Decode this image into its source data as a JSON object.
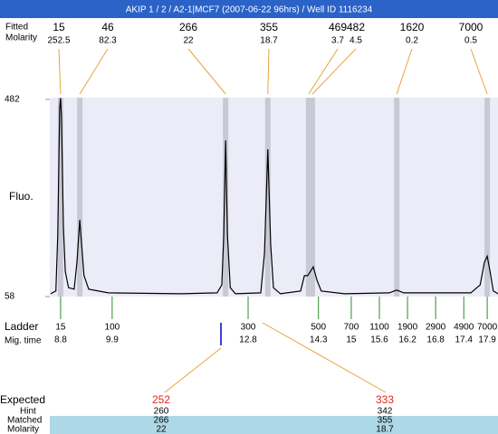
{
  "title": "AKIP 1 / 2 / A2-1|MCF7 (2007-06-22 96hrs) / Well ID 1116234",
  "chart_data": {
    "type": "line",
    "y_label": "Fluo.",
    "ylim": [
      58,
      482
    ],
    "yticks": [
      58,
      482
    ],
    "xlim": [
      8.57,
      18.13
    ],
    "band_color": "#c9c9d6",
    "series": [
      {
        "color": "#000000",
        "x": [
          8.59,
          8.7,
          8.74,
          8.78,
          8.8,
          8.82,
          8.86,
          8.9,
          8.97,
          9.09,
          9.15,
          9.21,
          9.24,
          9.3,
          9.4,
          9.82,
          11.37,
          12.14,
          12.24,
          12.28,
          12.32,
          12.36,
          12.42,
          12.53,
          13.07,
          13.15,
          13.22,
          13.28,
          13.34,
          13.49,
          13.92,
          14.0,
          14.07,
          14.13,
          14.19,
          14.27,
          14.36,
          14.85,
          15.81,
          15.97,
          16.12,
          17.55,
          17.75,
          17.84,
          17.9,
          17.96,
          18.03,
          18.13
        ],
        "values": [
          64,
          70,
          190,
          463,
          485,
          443,
          210,
          112,
          77,
          74,
          132,
          223,
          181,
          103,
          74,
          66,
          64,
          66,
          83,
          190,
          394,
          190,
          77,
          64,
          66,
          151,
          375,
          171,
          77,
          64,
          70,
          103,
          103,
          112,
          122,
          93,
          70,
          64,
          66,
          72,
          66,
          66,
          83,
          132,
          145,
          112,
          70,
          64
        ]
      }
    ],
    "peaks": {
      "labels": [
        "Fitted",
        "Molarity"
      ],
      "sizes": [
        15,
        46,
        266,
        355,
        469,
        482,
        1620,
        7000
      ],
      "molarity": [
        252.5,
        82.3,
        22,
        18.7,
        3.7,
        4.5,
        0.2,
        0.5
      ],
      "x": [
        8.8,
        9.21,
        12.32,
        13.22,
        14.09,
        14.17,
        15.97,
        17.9
      ]
    },
    "ladder": {
      "labels": [
        "Ladder",
        "Mig. time"
      ],
      "color": "#2e8b2e",
      "sizes": [
        15,
        100,
        300,
        500,
        700,
        1100,
        1900,
        2900,
        4900,
        7000
      ],
      "x": [
        8.8,
        9.9,
        12.8,
        14.3,
        15,
        15.6,
        16.2,
        16.8,
        17.4,
        17.9
      ]
    }
  },
  "expected": {
    "label": "Expected",
    "row_labels": [
      "Hint",
      "Matched",
      "Molarity"
    ],
    "columns": [
      {
        "expected": 252,
        "hint": 260,
        "matched": 266,
        "molarity": 22
      },
      {
        "expected": 333,
        "hint": 342,
        "matched": 355,
        "molarity": 18.7
      }
    ]
  }
}
